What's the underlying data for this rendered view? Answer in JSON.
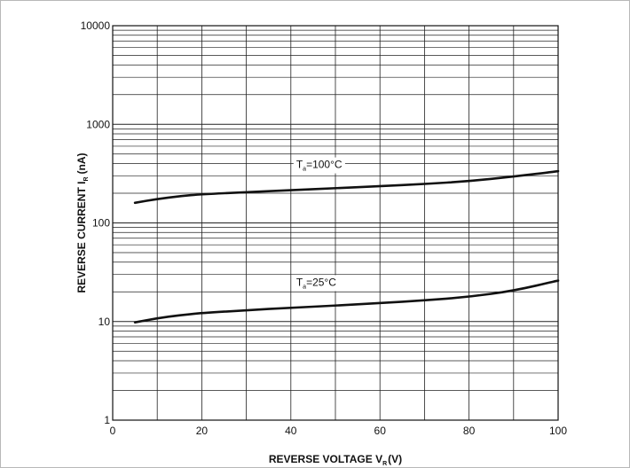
{
  "chart_data": {
    "type": "line",
    "xlabel": {
      "main": "REVERSE VOLTAGE  V",
      "sub": "R",
      "unit": "(V)"
    },
    "ylabel": {
      "main": "REVERSE CURRENT  I",
      "sub": "R",
      "unit": "(nA)"
    },
    "x_ticks": [
      "0",
      "20",
      "40",
      "60",
      "80",
      "100"
    ],
    "y_ticks": [
      "1",
      "10",
      "100",
      "1000",
      "10000"
    ],
    "xlim": [
      0,
      100
    ],
    "ylim": [
      1,
      10000
    ],
    "y_scale": "log",
    "grid": true,
    "series": [
      {
        "name": "Ta=100°C",
        "label": {
          "main": "T",
          "sub": "a",
          "rest": "=100°C"
        },
        "x": [
          5,
          10,
          15,
          20,
          30,
          40,
          50,
          60,
          70,
          80,
          90,
          100
        ],
        "y": [
          160,
          175,
          187,
          195,
          205,
          215,
          225,
          236,
          248,
          265,
          295,
          335
        ]
      },
      {
        "name": "Ta=25°C",
        "label": {
          "main": "T",
          "sub": "a",
          "rest": "=25°C"
        },
        "x": [
          5,
          10,
          15,
          20,
          30,
          40,
          50,
          60,
          70,
          80,
          90,
          100
        ],
        "y": [
          9.8,
          10.8,
          11.6,
          12.2,
          13.0,
          13.8,
          14.5,
          15.4,
          16.4,
          17.8,
          20.5,
          26
        ]
      }
    ]
  }
}
